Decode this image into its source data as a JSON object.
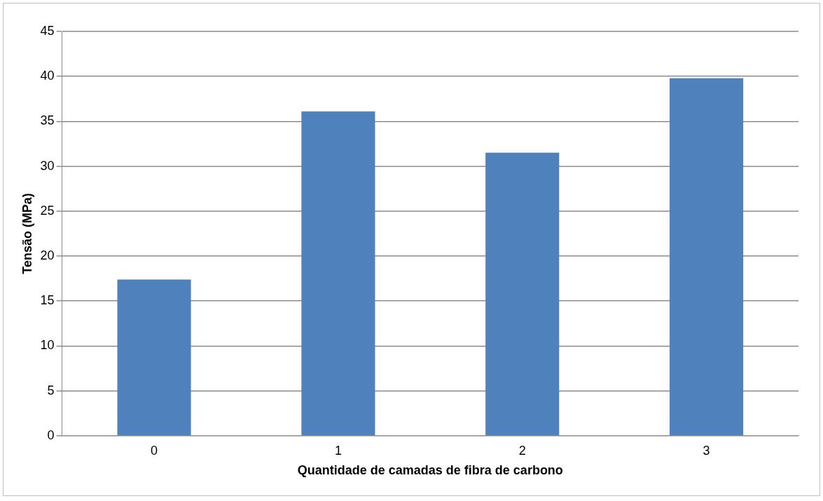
{
  "chart_data": {
    "type": "bar",
    "xlabel": "Quantidade de camadas de fibra de carbono",
    "ylabel": "Tensão (MPa)",
    "categories": [
      "0",
      "1",
      "2",
      "3"
    ],
    "values": [
      17.4,
      36.1,
      31.5,
      39.8
    ],
    "color": "#4f81bd",
    "ylim": [
      0,
      45
    ],
    "yticks": [
      0,
      5,
      10,
      15,
      20,
      25,
      30,
      35,
      40,
      45
    ],
    "grid": "y"
  }
}
